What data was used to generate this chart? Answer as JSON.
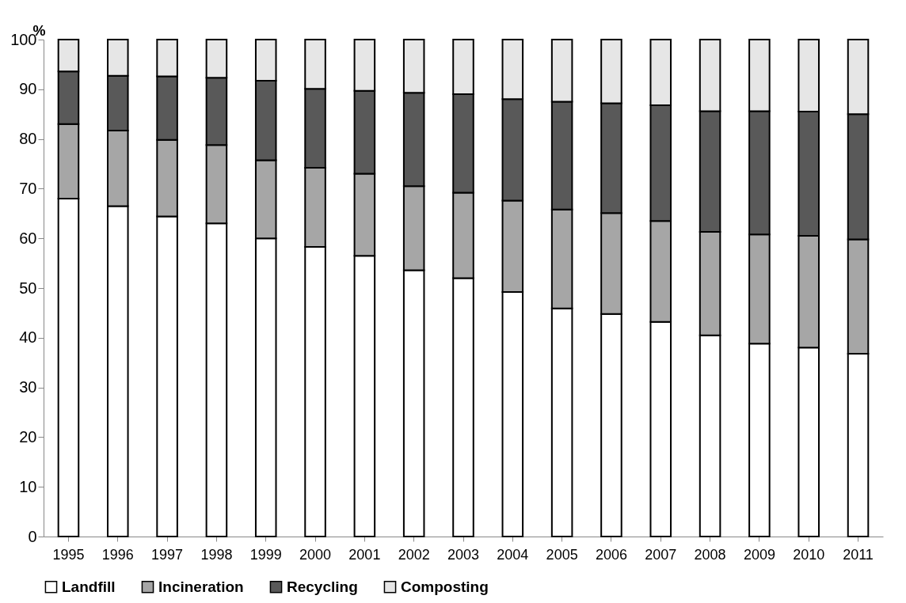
{
  "chart_data": {
    "type": "bar",
    "stacked": true,
    "ylabel": "%",
    "categories": [
      "1995",
      "1996",
      "1997",
      "1998",
      "1999",
      "2000",
      "2001",
      "2002",
      "2003",
      "2004",
      "2005",
      "2006",
      "2007",
      "2008",
      "2009",
      "2010",
      "2011"
    ],
    "series": [
      {
        "name": "Landfill",
        "color": "#ffffff",
        "values": [
          68,
          66.5,
          64.4,
          63,
          60,
          58.3,
          56.5,
          53.6,
          52,
          49.2,
          45.9,
          44.8,
          43.2,
          40.5,
          38.8,
          38,
          36.8
        ]
      },
      {
        "name": "Incineration",
        "color": "#a6a6a6",
        "values": [
          15,
          15.2,
          15.4,
          15.8,
          15.7,
          15.9,
          16.5,
          16.9,
          17.2,
          18.4,
          19.9,
          20.3,
          20.3,
          20.8,
          22,
          22.5,
          23
        ]
      },
      {
        "name": "Recycling",
        "color": "#595959",
        "values": [
          10.6,
          11,
          12.8,
          13.5,
          16,
          15.9,
          16.7,
          18.8,
          19.8,
          20.4,
          21.7,
          22.1,
          23.3,
          24.3,
          24.8,
          25,
          25.2
        ]
      },
      {
        "name": "Composting",
        "color": "#e6e6e6",
        "values": [
          6.4,
          7.3,
          7.4,
          7.7,
          8.3,
          9.9,
          10.3,
          10.7,
          11,
          12,
          12.5,
          12.8,
          13.2,
          14.4,
          14.4,
          14.5,
          15
        ]
      }
    ],
    "ylim": [
      0,
      100
    ],
    "yticks": [
      0,
      10,
      20,
      30,
      40,
      50,
      60,
      70,
      80,
      90,
      100
    ],
    "grid": false,
    "legend": "bottom"
  }
}
